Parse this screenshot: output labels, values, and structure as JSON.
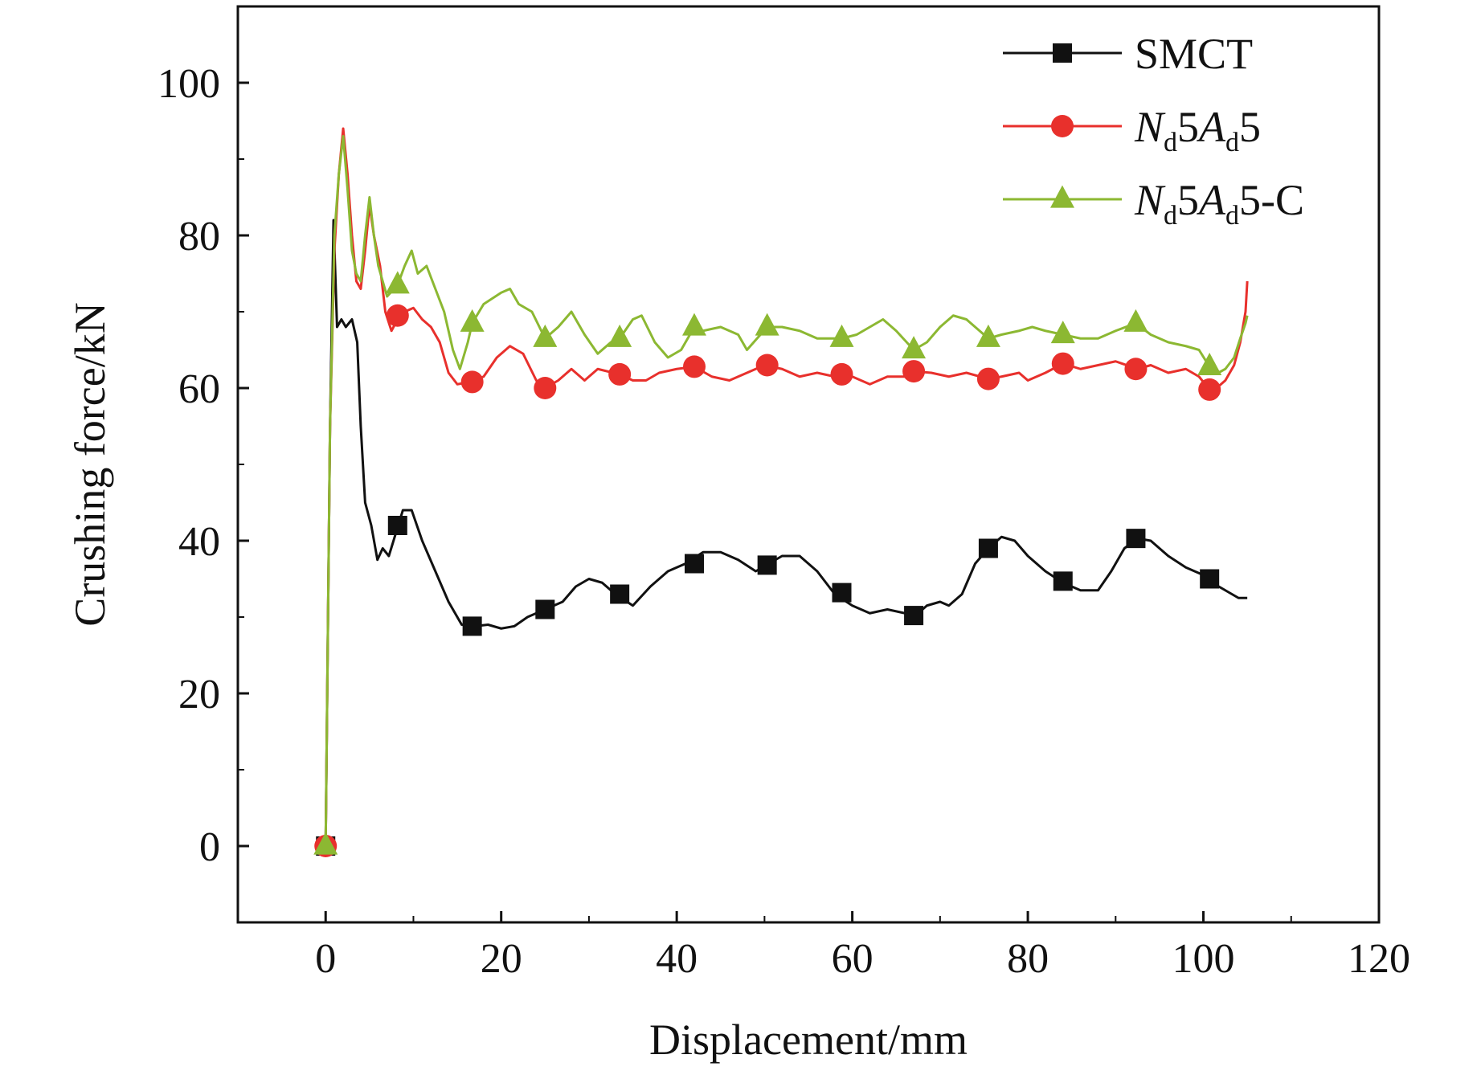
{
  "chart_data": {
    "type": "line",
    "title": "",
    "xlabel": "Displacement/mm",
    "ylabel": "Crushing force/kN",
    "xlim": [
      -10,
      120
    ],
    "ylim": [
      -10,
      110
    ],
    "xticks": [
      0,
      20,
      40,
      60,
      80,
      100,
      120
    ],
    "yticks": [
      0,
      20,
      40,
      60,
      80,
      100
    ],
    "xtick_labels": [
      "0",
      "20",
      "40",
      "60",
      "80",
      "100",
      "120"
    ],
    "ytick_labels": [
      "0",
      "20",
      "40",
      "60",
      "80",
      "100"
    ],
    "legend_position": "top-right",
    "series": [
      {
        "name": "SMCT",
        "legend_parts": [
          {
            "t": "SMCT",
            "s": "normal"
          }
        ],
        "color": "#111111",
        "marker": "square",
        "line": [
          [
            0,
            0
          ],
          [
            0.5,
            55
          ],
          [
            0.9,
            82
          ],
          [
            1.3,
            68
          ],
          [
            1.8,
            69
          ],
          [
            2.3,
            68
          ],
          [
            3,
            69
          ],
          [
            3.6,
            66
          ],
          [
            4,
            55
          ],
          [
            4.5,
            45
          ],
          [
            5.2,
            42
          ],
          [
            5.9,
            37.5
          ],
          [
            6.5,
            39
          ],
          [
            7.2,
            38
          ],
          [
            8,
            41
          ],
          [
            8.8,
            44
          ],
          [
            9.8,
            44
          ],
          [
            11,
            40
          ],
          [
            12.5,
            36
          ],
          [
            14,
            32
          ],
          [
            15.5,
            29
          ],
          [
            17,
            28.8
          ],
          [
            18.5,
            29
          ],
          [
            20,
            28.5
          ],
          [
            21.5,
            28.8
          ],
          [
            23,
            30
          ],
          [
            25,
            31
          ],
          [
            27,
            32
          ],
          [
            28.5,
            34
          ],
          [
            30,
            35
          ],
          [
            31.5,
            34.5
          ],
          [
            33,
            33
          ],
          [
            35,
            31.5
          ],
          [
            37,
            34
          ],
          [
            39,
            36
          ],
          [
            41,
            37
          ],
          [
            43,
            38.5
          ],
          [
            45,
            38.5
          ],
          [
            47,
            37.5
          ],
          [
            49,
            36
          ],
          [
            50.5,
            37
          ],
          [
            52,
            38
          ],
          [
            54,
            38
          ],
          [
            56,
            36
          ],
          [
            58,
            33
          ],
          [
            60,
            31.5
          ],
          [
            62,
            30.5
          ],
          [
            64,
            31
          ],
          [
            66,
            30.5
          ],
          [
            67,
            30
          ],
          [
            68.5,
            31.5
          ],
          [
            70,
            32
          ],
          [
            71,
            31.5
          ],
          [
            72.5,
            33
          ],
          [
            74,
            37
          ],
          [
            75.5,
            39
          ],
          [
            77,
            40.5
          ],
          [
            78.5,
            40
          ],
          [
            80,
            38
          ],
          [
            82,
            36
          ],
          [
            84,
            34.5
          ],
          [
            86,
            33.5
          ],
          [
            88,
            33.5
          ],
          [
            89.5,
            36
          ],
          [
            91,
            39
          ],
          [
            92.5,
            40.3
          ],
          [
            94,
            40
          ],
          [
            96,
            38
          ],
          [
            98,
            36.5
          ],
          [
            100,
            35.5
          ],
          [
            101,
            34.5
          ],
          [
            102.5,
            33.5
          ],
          [
            104,
            32.5
          ],
          [
            105,
            32.5
          ]
        ],
        "markers": [
          [
            0,
            0
          ],
          [
            8.2,
            42
          ],
          [
            16.7,
            28.8
          ],
          [
            25,
            31
          ],
          [
            33.5,
            33
          ],
          [
            42,
            37
          ],
          [
            50.3,
            36.8
          ],
          [
            58.8,
            33.2
          ],
          [
            67,
            30.2
          ],
          [
            75.5,
            39
          ],
          [
            84,
            34.7
          ],
          [
            92.3,
            40.3
          ],
          [
            100.7,
            35
          ]
        ]
      },
      {
        "name": "Nd5Ad5",
        "legend_parts": [
          {
            "t": "N",
            "s": "i"
          },
          {
            "t": "d",
            "s": "sub"
          },
          {
            "t": "5",
            "s": "normal"
          },
          {
            "t": "A",
            "s": "i"
          },
          {
            "t": "d",
            "s": "sub"
          },
          {
            "t": "5",
            "s": "normal"
          }
        ],
        "color": "#e8302c",
        "marker": "circle",
        "line": [
          [
            0,
            0
          ],
          [
            0.5,
            55
          ],
          [
            1,
            78
          ],
          [
            1.5,
            88
          ],
          [
            2,
            94
          ],
          [
            2.5,
            88
          ],
          [
            3,
            80
          ],
          [
            3.5,
            74
          ],
          [
            4,
            73
          ],
          [
            4.5,
            78
          ],
          [
            5,
            84
          ],
          [
            5.5,
            80
          ],
          [
            6.2,
            76
          ],
          [
            6.8,
            70
          ],
          [
            7.5,
            67.5
          ],
          [
            8.2,
            69
          ],
          [
            9,
            70
          ],
          [
            10,
            70.5
          ],
          [
            11,
            69
          ],
          [
            12,
            68
          ],
          [
            13,
            66
          ],
          [
            14,
            62
          ],
          [
            15,
            60.5
          ],
          [
            16.5,
            60.8
          ],
          [
            18,
            61.5
          ],
          [
            19.5,
            64
          ],
          [
            21,
            65.5
          ],
          [
            22.5,
            64.5
          ],
          [
            24,
            61
          ],
          [
            25,
            60
          ],
          [
            26.5,
            61
          ],
          [
            28,
            62.5
          ],
          [
            29.5,
            61
          ],
          [
            31,
            62.5
          ],
          [
            33.5,
            61.8
          ],
          [
            35,
            61
          ],
          [
            36.5,
            61
          ],
          [
            38,
            62
          ],
          [
            40,
            62.5
          ],
          [
            42,
            62.8
          ],
          [
            44,
            61.5
          ],
          [
            46,
            61
          ],
          [
            48,
            62
          ],
          [
            50,
            63
          ],
          [
            52,
            62.5
          ],
          [
            54,
            61.5
          ],
          [
            56,
            62
          ],
          [
            58,
            61.5
          ],
          [
            60,
            61.5
          ],
          [
            62,
            60.5
          ],
          [
            64,
            61.5
          ],
          [
            66,
            61.5
          ],
          [
            67,
            62.2
          ],
          [
            69,
            62
          ],
          [
            71,
            61.5
          ],
          [
            73,
            62
          ],
          [
            75.5,
            61.2
          ],
          [
            77,
            61.5
          ],
          [
            79,
            62
          ],
          [
            80,
            61
          ],
          [
            82,
            62
          ],
          [
            84,
            63.2
          ],
          [
            86,
            62.5
          ],
          [
            88,
            63
          ],
          [
            90,
            63.5
          ],
          [
            92.5,
            62.5
          ],
          [
            94,
            63
          ],
          [
            96,
            62
          ],
          [
            98,
            62.5
          ],
          [
            99.5,
            61.5
          ],
          [
            100.7,
            59.8
          ],
          [
            101.5,
            60
          ],
          [
            102.5,
            61
          ],
          [
            103.5,
            63
          ],
          [
            104.2,
            66
          ],
          [
            104.8,
            70
          ],
          [
            105,
            74
          ]
        ],
        "markers": [
          [
            0,
            0
          ],
          [
            8.2,
            69.5
          ],
          [
            16.7,
            60.8
          ],
          [
            25,
            60
          ],
          [
            33.5,
            61.8
          ],
          [
            42,
            62.8
          ],
          [
            50.3,
            63
          ],
          [
            58.8,
            61.8
          ],
          [
            67,
            62.2
          ],
          [
            75.5,
            61.2
          ],
          [
            84,
            63.2
          ],
          [
            92.3,
            62.5
          ],
          [
            100.7,
            59.8
          ]
        ]
      },
      {
        "name": "Nd5Ad5-C",
        "legend_parts": [
          {
            "t": "N",
            "s": "i"
          },
          {
            "t": "d",
            "s": "sub"
          },
          {
            "t": "5",
            "s": "normal"
          },
          {
            "t": "A",
            "s": "i"
          },
          {
            "t": "d",
            "s": "sub"
          },
          {
            "t": "5-C",
            "s": "normal"
          }
        ],
        "color": "#8cb832",
        "marker": "triangle",
        "line": [
          [
            0,
            0
          ],
          [
            0.5,
            55
          ],
          [
            1,
            80
          ],
          [
            1.5,
            88
          ],
          [
            2,
            93
          ],
          [
            2.5,
            86
          ],
          [
            3,
            78
          ],
          [
            3.5,
            75
          ],
          [
            4,
            74
          ],
          [
            4.5,
            80
          ],
          [
            5,
            85
          ],
          [
            5.5,
            80
          ],
          [
            6,
            76
          ],
          [
            7,
            72
          ],
          [
            8.2,
            73.5
          ],
          [
            9,
            76
          ],
          [
            9.8,
            78
          ],
          [
            10.5,
            75
          ],
          [
            11.5,
            76
          ],
          [
            12.5,
            73
          ],
          [
            13.5,
            70
          ],
          [
            14.5,
            65
          ],
          [
            15.3,
            62.5
          ],
          [
            16.2,
            66
          ],
          [
            16.7,
            68.5
          ],
          [
            18,
            71
          ],
          [
            20,
            72.5
          ],
          [
            21,
            73
          ],
          [
            22,
            71
          ],
          [
            23.5,
            70
          ],
          [
            25,
            66.5
          ],
          [
            26.5,
            68
          ],
          [
            28,
            70
          ],
          [
            29.5,
            67
          ],
          [
            31,
            64.5
          ],
          [
            32.5,
            66
          ],
          [
            33.5,
            66.5
          ],
          [
            35,
            69
          ],
          [
            36,
            69.5
          ],
          [
            37.5,
            66
          ],
          [
            39,
            64
          ],
          [
            40.5,
            65
          ],
          [
            42,
            68
          ],
          [
            43,
            67.5
          ],
          [
            45,
            68
          ],
          [
            47,
            67
          ],
          [
            48,
            65
          ],
          [
            50.3,
            68
          ],
          [
            52,
            68
          ],
          [
            54,
            67.5
          ],
          [
            56,
            66.5
          ],
          [
            58.8,
            66.5
          ],
          [
            60.5,
            67
          ],
          [
            62,
            68
          ],
          [
            63.5,
            69
          ],
          [
            65,
            67.5
          ],
          [
            67,
            65
          ],
          [
            68.5,
            66
          ],
          [
            70,
            68
          ],
          [
            71.5,
            69.5
          ],
          [
            73,
            69
          ],
          [
            75.5,
            66.5
          ],
          [
            77,
            67
          ],
          [
            79,
            67.5
          ],
          [
            80.5,
            68
          ],
          [
            82,
            67.5
          ],
          [
            84,
            67
          ],
          [
            86,
            66.5
          ],
          [
            88,
            66.5
          ],
          [
            90,
            67.5
          ],
          [
            92.3,
            68.5
          ],
          [
            94,
            67
          ],
          [
            96,
            66
          ],
          [
            98,
            65.5
          ],
          [
            99.5,
            65
          ],
          [
            100.7,
            62.8
          ],
          [
            101.7,
            62
          ],
          [
            102.5,
            62.5
          ],
          [
            103.5,
            64
          ],
          [
            104.2,
            66.5
          ],
          [
            104.8,
            68.5
          ],
          [
            105,
            69.5
          ]
        ],
        "markers": [
          [
            0,
            0
          ],
          [
            8.2,
            73.5
          ],
          [
            16.7,
            68.5
          ],
          [
            25,
            66.5
          ],
          [
            33.5,
            66.5
          ],
          [
            42,
            68
          ],
          [
            50.3,
            68
          ],
          [
            58.8,
            66.5
          ],
          [
            67,
            65
          ],
          [
            75.5,
            66.5
          ],
          [
            84,
            67
          ],
          [
            92.3,
            68.5
          ],
          [
            100.7,
            62.8
          ]
        ]
      }
    ]
  }
}
